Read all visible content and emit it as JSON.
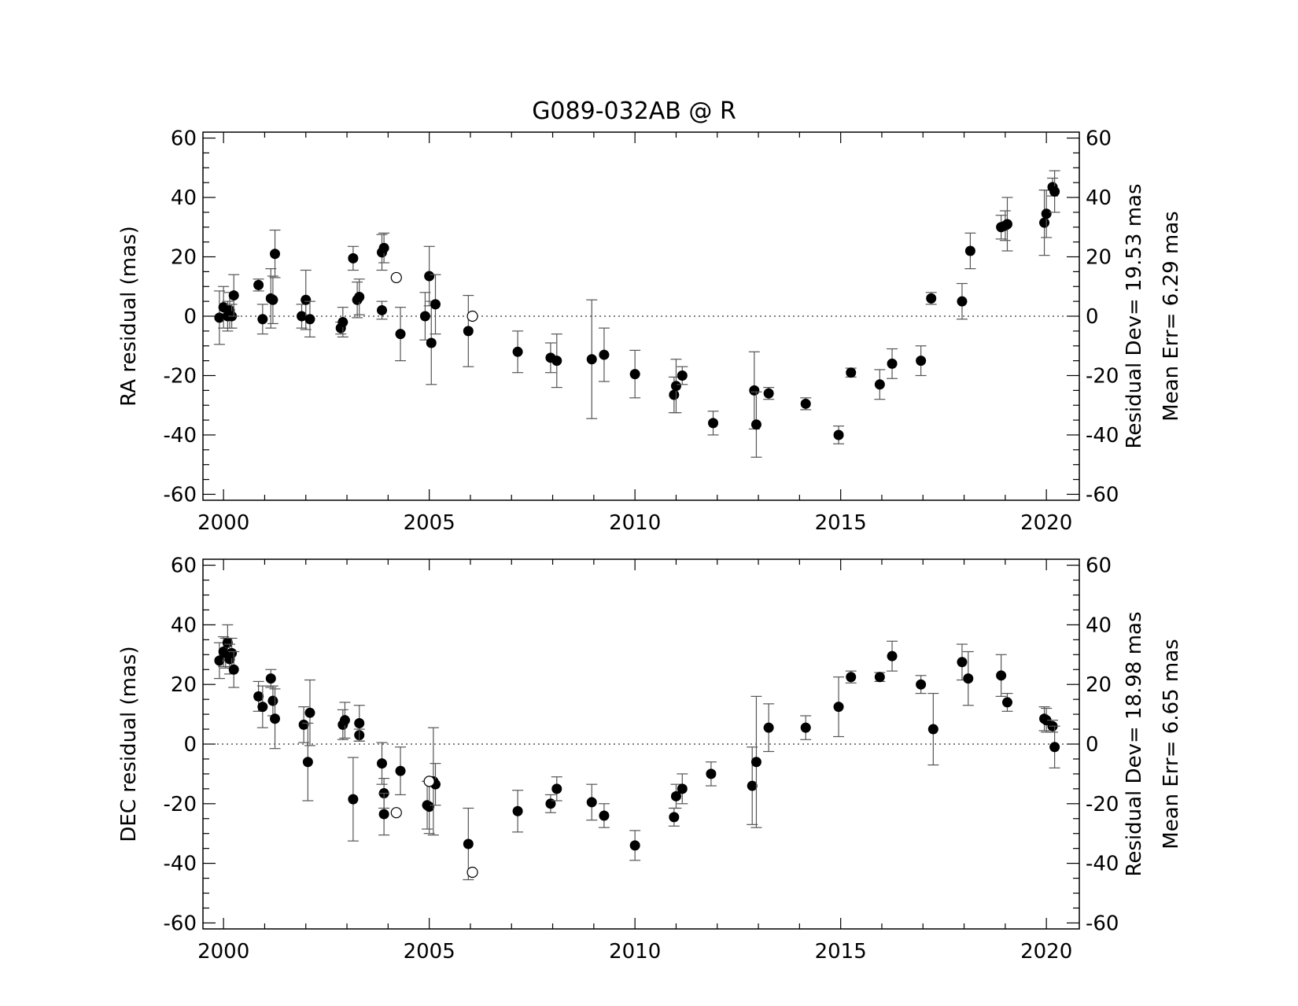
{
  "title": "G089-032AB @ R",
  "chart_data": [
    {
      "type": "scatter",
      "panel": "RA",
      "ylabel": "RA residual (mas)",
      "right_label_1": "Residual Dev=  19.53 mas",
      "right_label_2": "Mean  Err=  6.29 mas",
      "xlim": [
        1999.5,
        2020.8
      ],
      "ylim": [
        -62,
        62
      ],
      "xticks": [
        "2000",
        "2005",
        "2010",
        "2015",
        "2020"
      ],
      "xtick_values": [
        2000,
        2005,
        2010,
        2015,
        2020
      ],
      "yticks": [
        "60",
        "40",
        "20",
        "0",
        "-20",
        "-40",
        "-60"
      ],
      "ytick_values": [
        60,
        40,
        20,
        0,
        -20,
        -40,
        -60
      ],
      "zero_line": "dotted",
      "series": [
        {
          "marker": "filled-circle",
          "points": [
            {
              "x": 1999.9,
              "y": -0.5,
              "err": 9
            },
            {
              "x": 2000.0,
              "y": 3,
              "err": 7
            },
            {
              "x": 2000.1,
              "y": 0,
              "err": 5
            },
            {
              "x": 2000.15,
              "y": 2,
              "err": 6
            },
            {
              "x": 2000.2,
              "y": 0,
              "err": 4
            },
            {
              "x": 2000.25,
              "y": 7,
              "err": 7
            },
            {
              "x": 2000.85,
              "y": 10.5,
              "err": 2
            },
            {
              "x": 2000.95,
              "y": -1,
              "err": 5
            },
            {
              "x": 2001.15,
              "y": 6,
              "err": 10
            },
            {
              "x": 2001.2,
              "y": 5.5,
              "err": 8
            },
            {
              "x": 2001.25,
              "y": 21,
              "err": 8
            },
            {
              "x": 2001.9,
              "y": 0,
              "err": 4
            },
            {
              "x": 2002.0,
              "y": 5.5,
              "err": 10
            },
            {
              "x": 2002.1,
              "y": -1,
              "err": 6
            },
            {
              "x": 2002.85,
              "y": -4,
              "err": 2
            },
            {
              "x": 2002.9,
              "y": -2,
              "err": 5
            },
            {
              "x": 2003.15,
              "y": 19.5,
              "err": 4
            },
            {
              "x": 2003.25,
              "y": 5.5,
              "err": 6
            },
            {
              "x": 2003.3,
              "y": 6.5,
              "err": 6
            },
            {
              "x": 2003.85,
              "y": 2,
              "err": 3
            },
            {
              "x": 2003.85,
              "y": 21.5,
              "err": 6
            },
            {
              "x": 2003.9,
              "y": 23,
              "err": 5
            },
            {
              "x": 2004.3,
              "y": -6,
              "err": 9
            },
            {
              "x": 2004.9,
              "y": 0,
              "err": 8
            },
            {
              "x": 2005.0,
              "y": 13.5,
              "err": 10
            },
            {
              "x": 2005.05,
              "y": -9,
              "err": 14
            },
            {
              "x": 2005.15,
              "y": 4,
              "err": 10
            },
            {
              "x": 2005.95,
              "y": -5,
              "err": 12
            },
            {
              "x": 2007.15,
              "y": -12,
              "err": 7
            },
            {
              "x": 2007.95,
              "y": -14,
              "err": 5
            },
            {
              "x": 2008.1,
              "y": -15,
              "err": 9
            },
            {
              "x": 2008.95,
              "y": -14.5,
              "err": 20
            },
            {
              "x": 2009.25,
              "y": -13,
              "err": 9
            },
            {
              "x": 2010.0,
              "y": -19.5,
              "err": 8
            },
            {
              "x": 2010.95,
              "y": -26.5,
              "err": 6
            },
            {
              "x": 2011.0,
              "y": -23.5,
              "err": 9
            },
            {
              "x": 2011.15,
              "y": -20,
              "err": 3
            },
            {
              "x": 2011.9,
              "y": -36,
              "err": 4
            },
            {
              "x": 2012.9,
              "y": -25,
              "err": 13
            },
            {
              "x": 2012.95,
              "y": -36.5,
              "err": 11
            },
            {
              "x": 2013.25,
              "y": -26,
              "err": 2
            },
            {
              "x": 2014.15,
              "y": -29.5,
              "err": 2
            },
            {
              "x": 2014.95,
              "y": -40,
              "err": 3
            },
            {
              "x": 2015.25,
              "y": -19,
              "err": 1.5
            },
            {
              "x": 2015.95,
              "y": -23,
              "err": 5
            },
            {
              "x": 2016.25,
              "y": -16,
              "err": 5
            },
            {
              "x": 2016.95,
              "y": -15,
              "err": 5
            },
            {
              "x": 2017.2,
              "y": 6,
              "err": 2
            },
            {
              "x": 2017.95,
              "y": 5,
              "err": 6
            },
            {
              "x": 2018.15,
              "y": 22,
              "err": 6
            },
            {
              "x": 2018.9,
              "y": 30,
              "err": 4
            },
            {
              "x": 2019.0,
              "y": 30.5,
              "err": 5
            },
            {
              "x": 2019.05,
              "y": 31,
              "err": 9
            },
            {
              "x": 2019.95,
              "y": 31.5,
              "err": 11
            },
            {
              "x": 2020.0,
              "y": 34.5,
              "err": 8
            },
            {
              "x": 2020.15,
              "y": 43.5,
              "err": 3
            },
            {
              "x": 2020.2,
              "y": 42,
              "err": 7
            }
          ]
        },
        {
          "marker": "open-circle",
          "points": [
            {
              "x": 2004.2,
              "y": 13
            },
            {
              "x": 2006.05,
              "y": 0
            }
          ]
        }
      ]
    },
    {
      "type": "scatter",
      "panel": "DEC",
      "ylabel": "DEC residual (mas)",
      "right_label_1": "Residual Dev=  18.98 mas",
      "right_label_2": "Mean  Err=  6.65 mas",
      "xlim": [
        1999.5,
        2020.8
      ],
      "ylim": [
        -62,
        62
      ],
      "xticks": [
        "2000",
        "2005",
        "2010",
        "2015",
        "2020"
      ],
      "xtick_values": [
        2000,
        2005,
        2010,
        2015,
        2020
      ],
      "yticks": [
        "60",
        "40",
        "20",
        "0",
        "-20",
        "-40",
        "-60"
      ],
      "ytick_values": [
        60,
        40,
        20,
        0,
        -20,
        -40,
        -60
      ],
      "zero_line": "dotted",
      "series": [
        {
          "marker": "filled-circle",
          "points": [
            {
              "x": 1999.9,
              "y": 28,
              "err": 6
            },
            {
              "x": 2000.0,
              "y": 31,
              "err": 5
            },
            {
              "x": 2000.05,
              "y": 30.5,
              "err": 5
            },
            {
              "x": 2000.1,
              "y": 34,
              "err": 6
            },
            {
              "x": 2000.15,
              "y": 28.5,
              "err": 5
            },
            {
              "x": 2000.2,
              "y": 30.5,
              "err": 5
            },
            {
              "x": 2000.25,
              "y": 25,
              "err": 6
            },
            {
              "x": 2000.85,
              "y": 16,
              "err": 5
            },
            {
              "x": 2000.95,
              "y": 12.5,
              "err": 7
            },
            {
              "x": 2001.15,
              "y": 22,
              "err": 3
            },
            {
              "x": 2001.2,
              "y": 14.5,
              "err": 5
            },
            {
              "x": 2001.25,
              "y": 8.5,
              "err": 10
            },
            {
              "x": 2001.95,
              "y": 6.5,
              "err": 6
            },
            {
              "x": 2002.05,
              "y": -6,
              "err": 13
            },
            {
              "x": 2002.1,
              "y": 10.5,
              "err": 11
            },
            {
              "x": 2002.9,
              "y": 6.5,
              "err": 5
            },
            {
              "x": 2002.95,
              "y": 8,
              "err": 6
            },
            {
              "x": 2003.15,
              "y": -18.5,
              "err": 14
            },
            {
              "x": 2003.3,
              "y": 3,
              "err": 2
            },
            {
              "x": 2003.3,
              "y": 7,
              "err": 6
            },
            {
              "x": 2003.85,
              "y": -6.5,
              "err": 7
            },
            {
              "x": 2003.9,
              "y": -16.5,
              "err": 5
            },
            {
              "x": 2003.9,
              "y": -23.5,
              "err": 7
            },
            {
              "x": 2004.3,
              "y": -9,
              "err": 8
            },
            {
              "x": 2004.95,
              "y": -20.5,
              "err": 8
            },
            {
              "x": 2005.0,
              "y": -21,
              "err": 9
            },
            {
              "x": 2005.1,
              "y": -12.5,
              "err": 18
            },
            {
              "x": 2005.15,
              "y": -13.5,
              "err": 7
            },
            {
              "x": 2005.95,
              "y": -33.5,
              "err": 12
            },
            {
              "x": 2007.15,
              "y": -22.5,
              "err": 7
            },
            {
              "x": 2007.95,
              "y": -20,
              "err": 3
            },
            {
              "x": 2008.1,
              "y": -15,
              "err": 4
            },
            {
              "x": 2008.95,
              "y": -19.5,
              "err": 6
            },
            {
              "x": 2009.25,
              "y": -24,
              "err": 4
            },
            {
              "x": 2010.0,
              "y": -34,
              "err": 5
            },
            {
              "x": 2010.95,
              "y": -24.5,
              "err": 3
            },
            {
              "x": 2011.0,
              "y": -17.5,
              "err": 4
            },
            {
              "x": 2011.15,
              "y": -15,
              "err": 5
            },
            {
              "x": 2011.85,
              "y": -10,
              "err": 4
            },
            {
              "x": 2012.85,
              "y": -14,
              "err": 13
            },
            {
              "x": 2012.95,
              "y": -6,
              "err": 22
            },
            {
              "x": 2013.25,
              "y": 5.5,
              "err": 8
            },
            {
              "x": 2014.15,
              "y": 5.5,
              "err": 4
            },
            {
              "x": 2014.95,
              "y": 12.5,
              "err": 10
            },
            {
              "x": 2015.25,
              "y": 22.5,
              "err": 2
            },
            {
              "x": 2015.95,
              "y": 22.5,
              "err": 1.5
            },
            {
              "x": 2016.25,
              "y": 29.5,
              "err": 5
            },
            {
              "x": 2016.95,
              "y": 20,
              "err": 3
            },
            {
              "x": 2017.25,
              "y": 5,
              "err": 12
            },
            {
              "x": 2017.95,
              "y": 27.5,
              "err": 6
            },
            {
              "x": 2018.1,
              "y": 22,
              "err": 9
            },
            {
              "x": 2018.9,
              "y": 23,
              "err": 7
            },
            {
              "x": 2019.05,
              "y": 14,
              "err": 3
            },
            {
              "x": 2019.95,
              "y": 8.5,
              "err": 4
            },
            {
              "x": 2020.0,
              "y": 8,
              "err": 4
            },
            {
              "x": 2020.15,
              "y": 6,
              "err": 2
            },
            {
              "x": 2020.2,
              "y": -1,
              "err": 7
            }
          ]
        },
        {
          "marker": "open-circle",
          "points": [
            {
              "x": 2004.2,
              "y": -23
            },
            {
              "x": 2005.0,
              "y": -12.5
            },
            {
              "x": 2006.05,
              "y": -43
            }
          ]
        }
      ]
    }
  ]
}
